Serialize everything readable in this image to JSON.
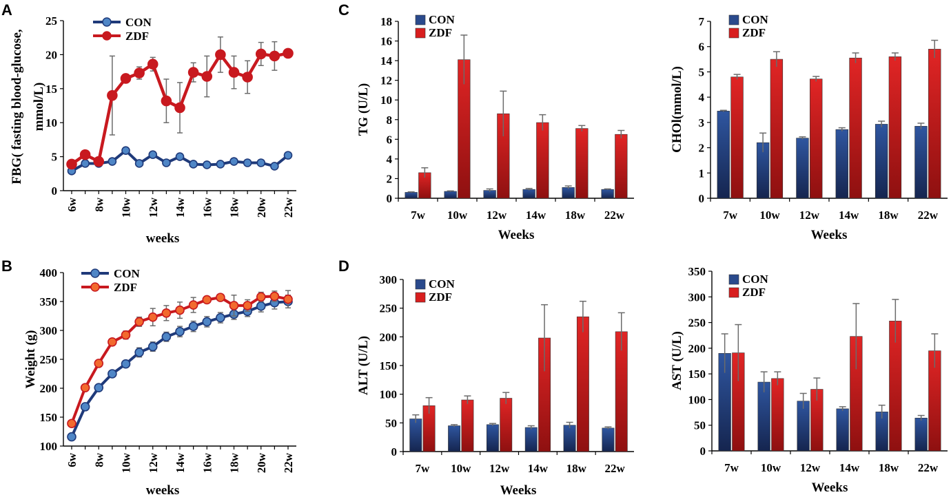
{
  "panels": {
    "A": "A",
    "B": "B",
    "C": "C",
    "D": "D"
  },
  "colors": {
    "con": "#1f3a7a",
    "con_light": "#4f86c6",
    "zdf": "#c8191f",
    "zdf_light": "#ff5040",
    "bar_con": "#2a4a8c",
    "bar_zdf": "#d81e1e",
    "err": "#6b6b6b"
  },
  "chart_data": [
    {
      "id": "A",
      "type": "line",
      "x": [
        6,
        7,
        8,
        9,
        10,
        11,
        12,
        13,
        14,
        15,
        16,
        17,
        18,
        19,
        20,
        21,
        22
      ],
      "xticks": [
        "6w",
        "8w",
        "10w",
        "12w",
        "14w",
        "16w",
        "18w",
        "20w",
        "22w"
      ],
      "xlabel": "weeks",
      "ylabel": [
        "FBG( fasting blood-glucose,",
        "mmol/L)"
      ],
      "ylim": [
        0,
        25
      ],
      "yticks": [
        0,
        5,
        10,
        15,
        20,
        25
      ],
      "legend": [
        "CON",
        "ZDF"
      ],
      "series": [
        {
          "name": "CON",
          "values": [
            2.9,
            4.0,
            4.0,
            4.3,
            5.9,
            4.0,
            5.3,
            4.1,
            5.0,
            3.9,
            3.8,
            3.9,
            4.3,
            4.1,
            4.1,
            3.6,
            5.2
          ],
          "errors": [
            0.2,
            0.2,
            0.2,
            0.2,
            0.2,
            0.2,
            0.2,
            0.2,
            0.2,
            0.2,
            0.2,
            0.2,
            0.2,
            0.2,
            0.2,
            0.2,
            0.2
          ]
        },
        {
          "name": "ZDF",
          "values": [
            3.9,
            5.3,
            4.3,
            14.0,
            16.5,
            17.3,
            18.6,
            13.2,
            12.2,
            17.4,
            16.8,
            20.0,
            17.4,
            16.7,
            20.1,
            19.8,
            20.2
          ],
          "errors": [
            0.3,
            0.3,
            0.3,
            5.8,
            0.5,
            0.9,
            1.0,
            3.2,
            3.7,
            1.4,
            3.0,
            2.6,
            2.4,
            2.4,
            1.7,
            2.1,
            0.3
          ]
        }
      ]
    },
    {
      "id": "B",
      "type": "line",
      "x": [
        6,
        7,
        8,
        9,
        10,
        11,
        12,
        13,
        14,
        15,
        16,
        17,
        18,
        19,
        20,
        21,
        22
      ],
      "xticks": [
        "6w",
        "8w",
        "10w",
        "12w",
        "14w",
        "16w",
        "18w",
        "20w",
        "22w"
      ],
      "xlabel": "weeks",
      "ylabel": [
        "Weight (g)"
      ],
      "ylim": [
        100,
        400
      ],
      "yticks": [
        100,
        150,
        200,
        250,
        300,
        350,
        400
      ],
      "legend": [
        "CON",
        "ZDF"
      ],
      "series": [
        {
          "name": "CON",
          "values": [
            116,
            168,
            201,
            225,
            242,
            262,
            272,
            289,
            298,
            307,
            315,
            322,
            328,
            333,
            342,
            348,
            350
          ],
          "errors": [
            3,
            3,
            4,
            4,
            6,
            8,
            8,
            8,
            9,
            9,
            9,
            9,
            9,
            9,
            10,
            11,
            11
          ]
        },
        {
          "name": "ZDF",
          "values": [
            139,
            201,
            243,
            280,
            292,
            315,
            323,
            330,
            335,
            344,
            353,
            357,
            343,
            343,
            358,
            359,
            354
          ],
          "errors": [
            3,
            4,
            4,
            4,
            7,
            8,
            15,
            13,
            14,
            13,
            4,
            4,
            18,
            10,
            8,
            9,
            15
          ]
        }
      ]
    },
    {
      "id": "C1",
      "type": "bar",
      "categories": [
        "7w",
        "10w",
        "12w",
        "14w",
        "18w",
        "22w"
      ],
      "xlabel": "Weeks",
      "ylabel": "TG (U/L)",
      "ylim": [
        0,
        18
      ],
      "yticks": [
        0,
        2,
        4,
        6,
        8,
        10,
        12,
        14,
        16,
        18
      ],
      "legend": [
        "CON",
        "ZDF"
      ],
      "series": [
        {
          "name": "CON",
          "values": [
            0.6,
            0.7,
            0.8,
            0.9,
            1.1,
            0.9
          ],
          "errors": [
            0.05,
            0.05,
            0.15,
            0.1,
            0.15,
            0.05
          ]
        },
        {
          "name": "ZDF",
          "values": [
            2.6,
            14.1,
            8.6,
            7.7,
            7.1,
            6.5
          ],
          "errors": [
            0.5,
            2.5,
            2.3,
            0.8,
            0.3,
            0.4
          ]
        }
      ]
    },
    {
      "id": "C2",
      "type": "bar",
      "categories": [
        "7w",
        "10w",
        "12w",
        "14w",
        "18w",
        "22w"
      ],
      "xlabel": "Weeks",
      "ylabel": "CHOl(mmol/L)",
      "ylim": [
        0,
        7
      ],
      "yticks": [
        0,
        1,
        2,
        3,
        4,
        5,
        6,
        7
      ],
      "legend": [
        "CON",
        "ZDF"
      ],
      "series": [
        {
          "name": "CON",
          "values": [
            3.45,
            2.2,
            2.38,
            2.72,
            2.93,
            2.85
          ],
          "errors": [
            0.03,
            0.38,
            0.05,
            0.07,
            0.12,
            0.12
          ]
        },
        {
          "name": "ZDF",
          "values": [
            4.8,
            5.5,
            4.72,
            5.55,
            5.6,
            5.9
          ],
          "errors": [
            0.1,
            0.3,
            0.1,
            0.2,
            0.15,
            0.35
          ]
        }
      ]
    },
    {
      "id": "D1",
      "type": "bar",
      "categories": [
        "7w",
        "10w",
        "12w",
        "14w",
        "18w",
        "22w"
      ],
      "xlabel": "Weeks",
      "ylabel": "ALT (U/L)",
      "ylim": [
        0,
        300
      ],
      "yticks": [
        0,
        50,
        100,
        150,
        200,
        250,
        300
      ],
      "legend": [
        "CON",
        "ZDF"
      ],
      "series": [
        {
          "name": "CON",
          "values": [
            57,
            45,
            47,
            42,
            46,
            41
          ],
          "errors": [
            7,
            2,
            2,
            3,
            5,
            2
          ]
        },
        {
          "name": "ZDF",
          "values": [
            80,
            90,
            93,
            198,
            235,
            209
          ],
          "errors": [
            14,
            7,
            10,
            58,
            27,
            33
          ]
        }
      ]
    },
    {
      "id": "D2",
      "type": "bar",
      "categories": [
        "7w",
        "10w",
        "12w",
        "14w",
        "18w",
        "22w"
      ],
      "xlabel": "Weeks",
      "ylabel": "AST (U/L)",
      "ylim": [
        0,
        350
      ],
      "yticks": [
        0,
        50,
        100,
        150,
        200,
        250,
        300,
        350
      ],
      "legend": [
        "CON",
        "ZDF"
      ],
      "series": [
        {
          "name": "CON",
          "values": [
            190,
            134,
            97,
            82,
            76,
            64
          ],
          "errors": [
            38,
            20,
            15,
            4,
            13,
            5
          ]
        },
        {
          "name": "ZDF",
          "values": [
            191,
            141,
            120,
            223,
            253,
            195
          ],
          "errors": [
            55,
            13,
            22,
            64,
            42,
            33
          ]
        }
      ]
    }
  ]
}
